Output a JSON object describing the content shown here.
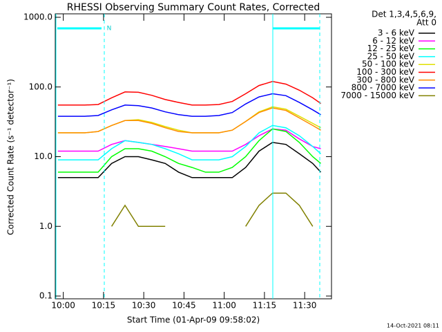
{
  "chart_data": {
    "type": "line",
    "title": "RHESSI Observing Summary Count Rates, Corrected",
    "legend_title": [
      "Det 1,3,4,5,6,9,",
      "Att 0"
    ],
    "xlabel": "Start Time (01-Apr-09 09:58:02)",
    "ylabel": "Corrected Count Rate (s⁻¹ detector⁻¹)",
    "footer": "14-Oct-2021 08:11",
    "annotations": [
      "N"
    ],
    "log_y": true,
    "legend": "right",
    "x": [
      "09:58",
      "10:03",
      "10:08",
      "10:13",
      "10:18",
      "10:23",
      "10:28",
      "10:33",
      "10:38",
      "10:43",
      "10:48",
      "10:53",
      "10:58",
      "11:03",
      "11:08",
      "11:13",
      "11:18",
      "11:23",
      "11:28",
      "11:33",
      "11:36"
    ],
    "xlim": [
      "09:57",
      "11:40"
    ],
    "xticks": [
      "10:00",
      "10:15",
      "10:30",
      "10:45",
      "11:00",
      "11:15",
      "11:30"
    ],
    "ylim": [
      0.1,
      1000
    ],
    "yticks": [
      {
        "value": 0.1,
        "label": "0.1"
      },
      {
        "value": 1,
        "label": "1.0"
      },
      {
        "value": 10,
        "label": "10.0"
      },
      {
        "value": 100,
        "label": "100.0"
      },
      {
        "value": 1000,
        "label": "1000.0"
      }
    ],
    "series": [
      {
        "name": "3 - 6 keV",
        "color": "#000000",
        "values": [
          5,
          5,
          5,
          5,
          8,
          10,
          10,
          9,
          8,
          6,
          5,
          5,
          5,
          5,
          7,
          12,
          16,
          15,
          11,
          8,
          6
        ]
      },
      {
        "name": "6 - 12 keV",
        "color": "#ff00ff",
        "values": [
          12,
          12,
          12,
          12,
          15,
          17,
          16,
          15,
          14,
          13,
          12,
          12,
          12,
          12,
          15,
          20,
          25,
          24,
          18,
          14,
          13
        ]
      },
      {
        "name": "12 - 25 keV",
        "color": "#00ff00",
        "values": [
          6,
          6,
          6,
          6,
          10,
          13,
          13,
          12,
          10,
          8,
          7,
          6,
          6,
          7,
          10,
          17,
          25,
          23,
          16,
          10,
          8
        ]
      },
      {
        "name": "25 - 50 keV",
        "color": "#00ffff",
        "values": [
          9,
          9,
          9,
          9,
          13,
          17,
          16,
          15,
          13,
          11,
          9,
          9,
          9,
          10,
          14,
          22,
          28,
          26,
          20,
          14,
          11
        ]
      },
      {
        "name": "50 - 100 keV",
        "color": "#e0e000",
        "values": [
          22,
          22,
          22,
          23,
          28,
          33,
          34,
          31,
          27,
          24,
          22,
          22,
          22,
          24,
          32,
          44,
          52,
          48,
          38,
          30,
          26
        ]
      },
      {
        "name": "100 - 300 keV",
        "color": "#ff0000",
        "values": [
          55,
          55,
          55,
          56,
          70,
          85,
          84,
          76,
          66,
          60,
          55,
          55,
          56,
          62,
          80,
          105,
          120,
          110,
          90,
          70,
          58
        ]
      },
      {
        "name": "300 - 800 keV",
        "color": "#ff8c00",
        "values": [
          22,
          22,
          22,
          23,
          28,
          33,
          33,
          30,
          26,
          23,
          22,
          22,
          22,
          24,
          32,
          43,
          50,
          46,
          36,
          28,
          24
        ]
      },
      {
        "name": "800 - 7000 keV",
        "color": "#0000ff",
        "values": [
          38,
          38,
          38,
          39,
          47,
          55,
          54,
          50,
          44,
          40,
          38,
          38,
          39,
          43,
          57,
          72,
          80,
          75,
          60,
          47,
          40
        ]
      },
      {
        "name": "7000 - 15000 keV",
        "color": "#808000",
        "values": [
          null,
          null,
          null,
          null,
          1,
          2,
          1,
          1,
          1,
          null,
          null,
          null,
          null,
          null,
          1,
          2,
          3,
          3,
          2,
          1,
          null
        ]
      }
    ]
  }
}
